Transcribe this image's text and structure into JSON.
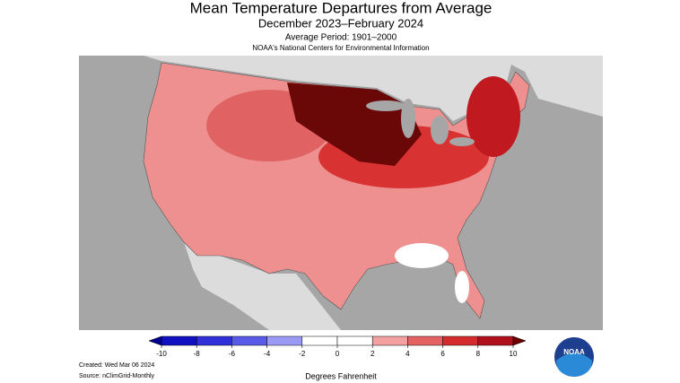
{
  "title": "Mean Temperature Departures from Average",
  "subtitle": "December 2023–February 2024",
  "average_period": "Average Period: 1901–2000",
  "source_line": "NOAA's National Centers for Environmental Information",
  "colorbar": {
    "label": "Degrees Fahrenheit",
    "ticks": [
      -10,
      -8,
      -6,
      -4,
      -2,
      0,
      2,
      4,
      6,
      8,
      10
    ],
    "colors": [
      "#1010c0",
      "#3030d8",
      "#5a5ae8",
      "#9a9af4",
      "#ffffff",
      "#ffffff",
      "#f2a0a0",
      "#e46262",
      "#d42c2c",
      "#b0101c"
    ],
    "under_color": "#000090",
    "over_color": "#6a0000"
  },
  "created": "Created: Wed Mar 06 2024",
  "data_source": "Source: nClimGrid-Monthly",
  "logo_text": "NOAA"
}
